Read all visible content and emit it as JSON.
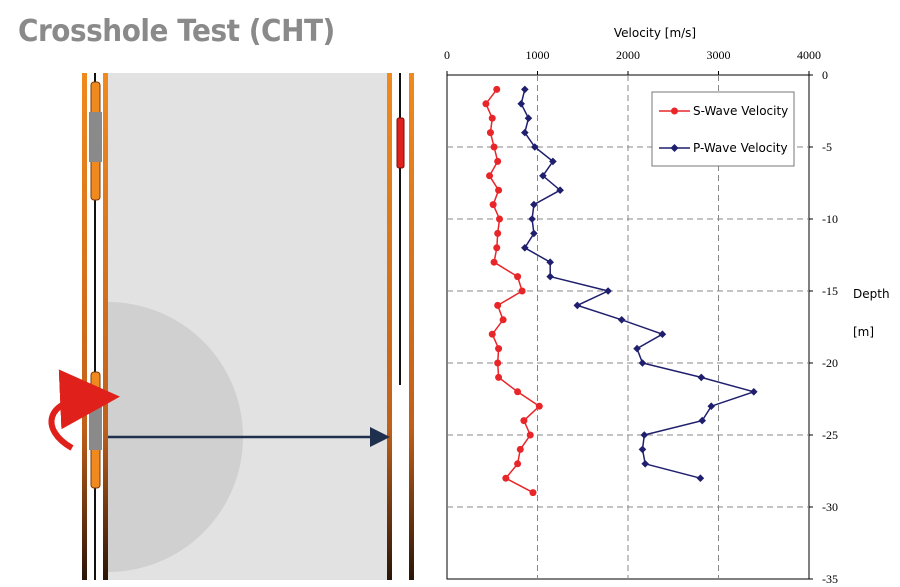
{
  "title": "Crosshole Test (CHT)",
  "chart_data": {
    "type": "line",
    "xlabel": "Velocity [m/s]",
    "ylabel_line1": "Depth",
    "ylabel_line2": "[m]",
    "xlim": [
      0,
      4000
    ],
    "ylim": [
      -35,
      0
    ],
    "x_ticks": [
      0,
      1000,
      2000,
      3000,
      4000
    ],
    "y_ticks": [
      0,
      -5,
      -10,
      -15,
      -20,
      -25,
      -30,
      -35
    ],
    "x_axis_position": "top",
    "y_axis_position": "right",
    "grid": true,
    "legend_position": "top-right",
    "series": [
      {
        "name": "S-Wave Velocity",
        "color": "#e8262a",
        "marker": "circle",
        "points": [
          [
            550,
            -1
          ],
          [
            430,
            -2
          ],
          [
            500,
            -3
          ],
          [
            480,
            -4
          ],
          [
            520,
            -5
          ],
          [
            560,
            -6
          ],
          [
            470,
            -7
          ],
          [
            570,
            -8
          ],
          [
            510,
            -9
          ],
          [
            580,
            -10
          ],
          [
            560,
            -11
          ],
          [
            550,
            -12
          ],
          [
            520,
            -13
          ],
          [
            780,
            -14
          ],
          [
            830,
            -15
          ],
          [
            560,
            -16
          ],
          [
            620,
            -17
          ],
          [
            500,
            -18
          ],
          [
            570,
            -19
          ],
          [
            560,
            -20
          ],
          [
            570,
            -21
          ],
          [
            780,
            -22
          ],
          [
            1020,
            -23
          ],
          [
            850,
            -24
          ],
          [
            920,
            -25
          ],
          [
            810,
            -26
          ],
          [
            780,
            -27
          ],
          [
            650,
            -28
          ],
          [
            950,
            -29
          ]
        ]
      },
      {
        "name": "P-Wave Velocity",
        "color": "#1f1f6e",
        "marker": "diamond",
        "points": [
          [
            860,
            -1
          ],
          [
            820,
            -2
          ],
          [
            900,
            -3
          ],
          [
            860,
            -4
          ],
          [
            970,
            -5
          ],
          [
            1170,
            -6
          ],
          [
            1060,
            -7
          ],
          [
            1250,
            -8
          ],
          [
            960,
            -9
          ],
          [
            940,
            -10
          ],
          [
            960,
            -11
          ],
          [
            860,
            -12
          ],
          [
            1140,
            -13
          ],
          [
            1140,
            -14
          ],
          [
            1780,
            -15
          ],
          [
            1440,
            -16
          ],
          [
            1930,
            -17
          ],
          [
            2380,
            -18
          ],
          [
            2100,
            -19
          ],
          [
            2160,
            -20
          ],
          [
            2810,
            -21
          ],
          [
            3390,
            -22
          ],
          [
            2920,
            -23
          ],
          [
            2820,
            -24
          ],
          [
            2180,
            -25
          ],
          [
            2160,
            -26
          ],
          [
            2190,
            -27
          ],
          [
            2800,
            -28
          ]
        ]
      }
    ]
  }
}
